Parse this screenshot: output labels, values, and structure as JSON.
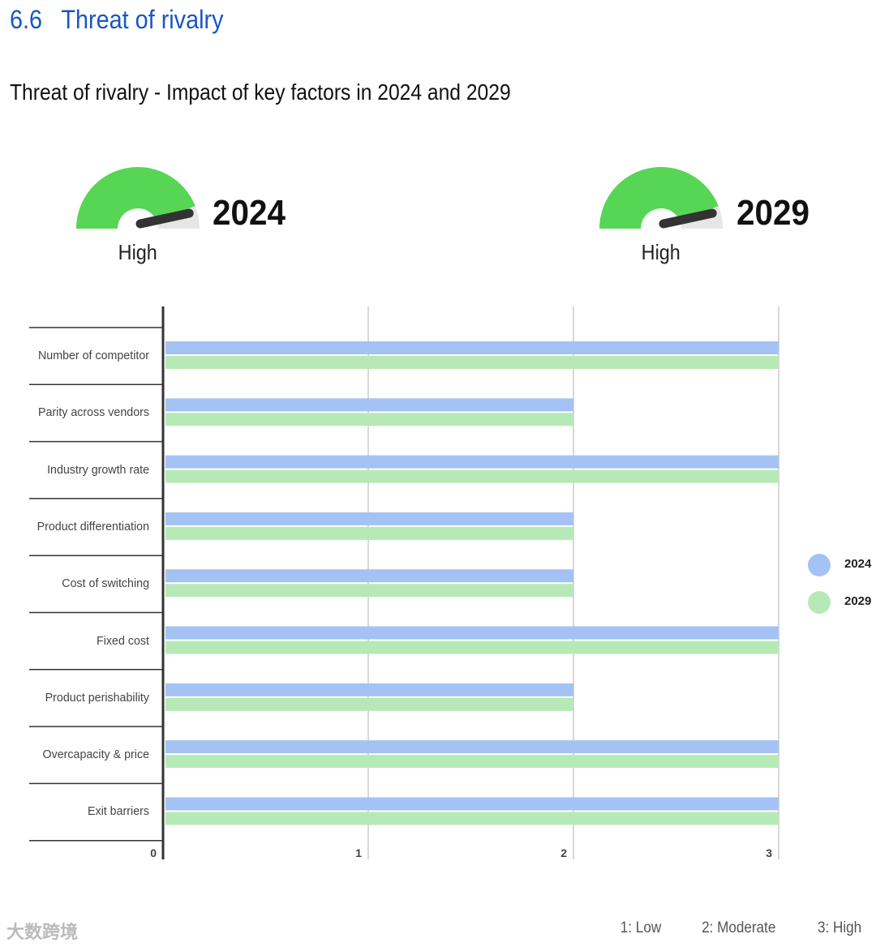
{
  "section": {
    "number": "6.6",
    "title": "Threat of rivalry"
  },
  "chart_title": "Threat of rivalry - Impact of key factors in 2024 and 2029",
  "gauges": [
    {
      "year": "2024",
      "level": "High",
      "value": 3
    },
    {
      "year": "2029",
      "level": "High",
      "value": 3
    }
  ],
  "colors": {
    "2024": "#a4c2f4",
    "2029": "#b7e9b7",
    "gauge_fill": "#57d655",
    "gauge_bg": "#e6e6e6",
    "needle": "#333333"
  },
  "chart_data": {
    "type": "bar",
    "orientation": "horizontal",
    "categories": [
      "Number of competitor",
      "Parity across vendors",
      "Industry growth rate",
      "Product differentiation",
      "Cost of switching",
      "Fixed cost",
      "Product perishability",
      "Overcapacity & price",
      "Exit barriers"
    ],
    "series": [
      {
        "name": "2024",
        "values": [
          3,
          2,
          3,
          2,
          2,
          3,
          2,
          3,
          3
        ]
      },
      {
        "name": "2029",
        "values": [
          3,
          2,
          3,
          2,
          2,
          3,
          2,
          3,
          3
        ]
      }
    ],
    "xlim": [
      0,
      3
    ],
    "xticks": [
      "0",
      "1",
      "2",
      "3"
    ],
    "grid": true,
    "legend": "right"
  },
  "scale_notes": [
    "1: Low",
    "2: Moderate",
    "3: High"
  ],
  "watermark": "大数跨境"
}
